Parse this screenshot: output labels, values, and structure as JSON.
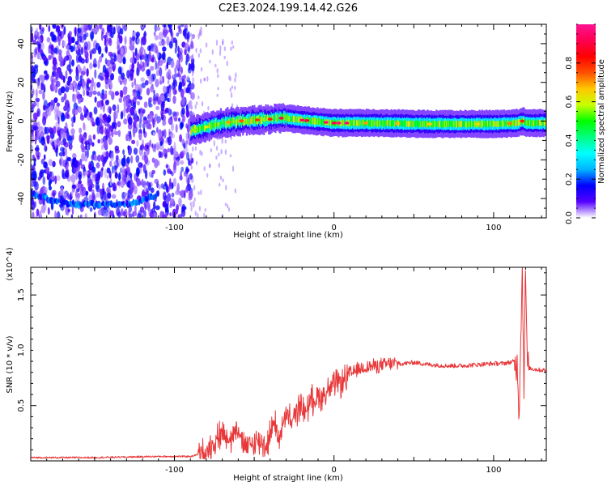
{
  "chart_data": [
    {
      "type": "heatmap",
      "title": "C2E3.2024.199.14.42.G26",
      "xlabel": "Height of straight line (km)",
      "ylabel": "Frequency (Hz)",
      "xlim": [
        -190,
        133
      ],
      "ylim": [
        -50,
        50
      ],
      "x_ticks": [
        -100,
        0,
        100
      ],
      "y_ticks": [
        -40,
        -20,
        0,
        20,
        40
      ],
      "colorbar": {
        "label": "Normalized spectral amplitude",
        "range": [
          0,
          1
        ],
        "ticks": [
          "0.0",
          "0.2",
          "0.4",
          "0.6",
          "0.8"
        ],
        "colors": [
          "#ffffff",
          "#5500ff",
          "#0000ff",
          "#00b4ff",
          "#00ffff",
          "#00ff80",
          "#00ff00",
          "#c8ff00",
          "#ffc800",
          "#ff5000",
          "#ff0000",
          "#ff0050",
          "#ff1493"
        ]
      },
      "ridge": {
        "x": [
          -90,
          -80,
          -70,
          -60,
          -50,
          -40,
          -35,
          -30,
          -20,
          0,
          20,
          60,
          100,
          115,
          118,
          120,
          133
        ],
        "y": [
          -5,
          -3,
          -1,
          0,
          0.5,
          1,
          1.5,
          1.5,
          0.5,
          -1,
          -1,
          -1.5,
          -1.5,
          -1,
          0,
          -1,
          -1
        ]
      },
      "lower_arc": {
        "x": [
          -190,
          -180,
          -170,
          -160,
          -150,
          -140,
          -130,
          -120,
          -110
        ],
        "y": [
          -37,
          -40,
          -42,
          -43,
          -43,
          -43,
          -43,
          -41,
          -38
        ]
      }
    },
    {
      "type": "line",
      "xlabel": "Height of straight line (km)",
      "ylabel": "SNR (10 * v/v)",
      "y_multiplier": "(x10^4)",
      "xlim": [
        -190,
        133
      ],
      "ylim": [
        0,
        1.75
      ],
      "x_ticks": [
        -100,
        0,
        100
      ],
      "y_ticks": [
        "0.5",
        "1.0",
        "1.5"
      ],
      "color": "#e8383a",
      "series": [
        {
          "x": [
            -190,
            -150,
            -110,
            -90,
            -82,
            -76,
            -70,
            -64,
            -60,
            -58,
            -54,
            -48,
            -42,
            -38,
            -34,
            -30,
            -26,
            -22,
            -18,
            -14,
            -10,
            -6,
            -2,
            2,
            6,
            10,
            14,
            20,
            28,
            36,
            44,
            50,
            60,
            70,
            80,
            90,
            100,
            105,
            110,
            113,
            115,
            116,
            117,
            118,
            119,
            120,
            121,
            122,
            125,
            130,
            133
          ],
          "y": [
            0.03,
            0.03,
            0.04,
            0.04,
            0.07,
            0.15,
            0.26,
            0.2,
            0.35,
            0.15,
            0.12,
            0.18,
            0.14,
            0.35,
            0.22,
            0.4,
            0.35,
            0.5,
            0.45,
            0.55,
            0.58,
            0.6,
            0.66,
            0.7,
            0.72,
            0.78,
            0.82,
            0.85,
            0.86,
            0.88,
            0.88,
            0.89,
            0.87,
            0.86,
            0.86,
            0.87,
            0.88,
            0.88,
            0.89,
            0.9,
            0.85,
            0.4,
            1.2,
            1.7,
            0.7,
            1.75,
            0.88,
            0.84,
            0.83,
            0.82,
            0.82
          ]
        }
      ]
    }
  ]
}
